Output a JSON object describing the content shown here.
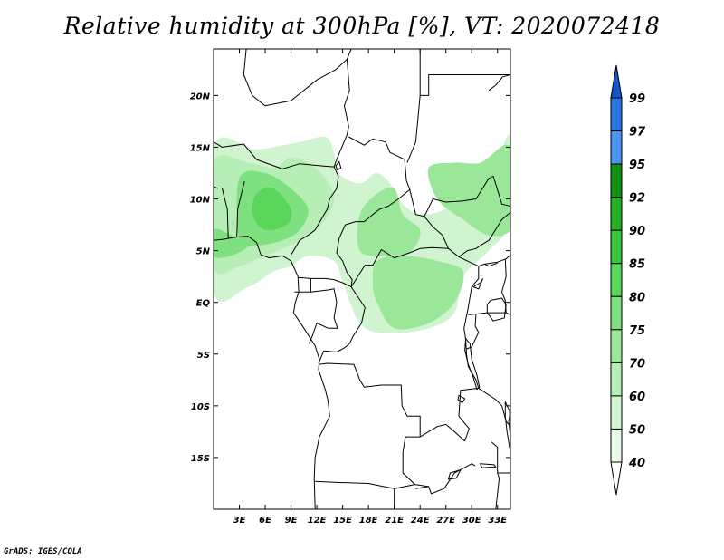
{
  "title": "Relative humidity at 300hPa [%], VT: 2020072418",
  "credit": "GrADS: IGES/COLA",
  "chart_data": {
    "type": "heatmap",
    "variable": "Relative humidity at 300hPa",
    "unit": "%",
    "valid_time": "2020072418",
    "xlim": [
      0,
      34.5
    ],
    "ylim": [
      -20,
      24.5
    ],
    "x_ticks": [
      {
        "value": 3,
        "label": "3E"
      },
      {
        "value": 6,
        "label": "6E"
      },
      {
        "value": 9,
        "label": "9E"
      },
      {
        "value": 12,
        "label": "12E"
      },
      {
        "value": 15,
        "label": "15E"
      },
      {
        "value": 18,
        "label": "18E"
      },
      {
        "value": 21,
        "label": "21E"
      },
      {
        "value": 24,
        "label": "24E"
      },
      {
        "value": 27,
        "label": "27E"
      },
      {
        "value": 30,
        "label": "30E"
      },
      {
        "value": 33,
        "label": "33E"
      }
    ],
    "y_ticks": [
      {
        "value": 20,
        "label": "20N"
      },
      {
        "value": 15,
        "label": "15N"
      },
      {
        "value": 10,
        "label": "10N"
      },
      {
        "value": 5,
        "label": "5N"
      },
      {
        "value": 0,
        "label": "EQ"
      },
      {
        "value": -5,
        "label": "5S"
      },
      {
        "value": -10,
        "label": "10S"
      },
      {
        "value": -15,
        "label": "15S"
      }
    ],
    "colorbar": {
      "labels": [
        "40",
        "50",
        "60",
        "70",
        "75",
        "80",
        "85",
        "90",
        "92",
        "95",
        "97",
        "99"
      ],
      "bins": [
        {
          "lower": null,
          "upper": 40,
          "color": "#ffffff"
        },
        {
          "lower": 40,
          "upper": 50,
          "color": "#e6f9e6"
        },
        {
          "lower": 50,
          "upper": 60,
          "color": "#d0f3d0"
        },
        {
          "lower": 60,
          "upper": 70,
          "color": "#b6eeb6"
        },
        {
          "lower": 70,
          "upper": 75,
          "color": "#9ae79a"
        },
        {
          "lower": 75,
          "upper": 80,
          "color": "#7ee07e"
        },
        {
          "lower": 80,
          "upper": 85,
          "color": "#5ad65a"
        },
        {
          "lower": 85,
          "upper": 90,
          "color": "#3cc43c"
        },
        {
          "lower": 90,
          "upper": 92,
          "color": "#24ae24"
        },
        {
          "lower": 92,
          "upper": 95,
          "color": "#109010"
        },
        {
          "lower": 95,
          "upper": 97,
          "color": "#4a94f0"
        },
        {
          "lower": 97,
          "upper": 99,
          "color": "#2a74e0"
        },
        {
          "lower": 99,
          "upper": null,
          "color": "#1456c8"
        }
      ]
    },
    "humid_regions": [
      {
        "level": 55,
        "points": [
          [
            0,
            15
          ],
          [
            5,
            14.8
          ],
          [
            10,
            15.5
          ],
          [
            13,
            16
          ],
          [
            14,
            14.5
          ],
          [
            14.5,
            12.5
          ],
          [
            17,
            11.5
          ],
          [
            19,
            12.5
          ],
          [
            21,
            11
          ],
          [
            22,
            9.5
          ],
          [
            24,
            8.5
          ],
          [
            27,
            9
          ],
          [
            30,
            10.5
          ],
          [
            33,
            14
          ],
          [
            34.5,
            16
          ],
          [
            34.5,
            8
          ],
          [
            32,
            5
          ],
          [
            29,
            2.5
          ],
          [
            28,
            -1
          ],
          [
            25,
            -2.5
          ],
          [
            20,
            -3
          ],
          [
            17,
            -2
          ],
          [
            15,
            2
          ],
          [
            14,
            4
          ],
          [
            11,
            4.5
          ],
          [
            9,
            3.5
          ],
          [
            7,
            3
          ],
          [
            4,
            1.5
          ],
          [
            0,
            1
          ]
        ]
      },
      {
        "level": 65,
        "points": [
          [
            0,
            13.5
          ],
          [
            4,
            13.5
          ],
          [
            7,
            13
          ],
          [
            9,
            14
          ],
          [
            11,
            13.5
          ],
          [
            13,
            12
          ],
          [
            14,
            10
          ],
          [
            13,
            8
          ],
          [
            11,
            6.5
          ],
          [
            9,
            5.5
          ],
          [
            6,
            4.5
          ],
          [
            3,
            3.5
          ],
          [
            0,
            3.5
          ]
        ]
      },
      {
        "level": 72,
        "points": [
          [
            17,
            8.5
          ],
          [
            19,
            10.5
          ],
          [
            21,
            11
          ],
          [
            22,
            8.5
          ],
          [
            24,
            7
          ],
          [
            23,
            5
          ],
          [
            20,
            4.5
          ],
          [
            17,
            5
          ]
        ]
      },
      {
        "level": 72,
        "points": [
          [
            25,
            13
          ],
          [
            28,
            13.5
          ],
          [
            31,
            13.5
          ],
          [
            34.5,
            15
          ],
          [
            34.5,
            7.5
          ],
          [
            32,
            6.5
          ],
          [
            29,
            8
          ],
          [
            26,
            10
          ]
        ]
      },
      {
        "level": 72,
        "points": [
          [
            19,
            4
          ],
          [
            22,
            4.5
          ],
          [
            26,
            4
          ],
          [
            29,
            3
          ],
          [
            28,
            0
          ],
          [
            25,
            -2
          ],
          [
            21,
            -2.5
          ],
          [
            19,
            0
          ],
          [
            18.5,
            2
          ]
        ]
      },
      {
        "level": 77,
        "points": [
          [
            3,
            12
          ],
          [
            6,
            12.5
          ],
          [
            9,
            11
          ],
          [
            11,
            9
          ],
          [
            10,
            7
          ],
          [
            8,
            6
          ],
          [
            5,
            5.5
          ],
          [
            3,
            6
          ]
        ]
      },
      {
        "level": 82,
        "points": [
          [
            5,
            10.5
          ],
          [
            7,
            11
          ],
          [
            9,
            9
          ],
          [
            8.5,
            7.5
          ],
          [
            6,
            7
          ],
          [
            4.5,
            8.5
          ]
        ]
      },
      {
        "level": 77,
        "points": [
          [
            0,
            7
          ],
          [
            2,
            6.5
          ],
          [
            4,
            5.5
          ],
          [
            2,
            4.5
          ],
          [
            0,
            4.5
          ]
        ]
      },
      {
        "level": 72,
        "points": [
          [
            31,
            10
          ],
          [
            33,
            11
          ],
          [
            34.5,
            10.5
          ],
          [
            34.5,
            7
          ],
          [
            32.5,
            7
          ]
        ]
      }
    ]
  }
}
